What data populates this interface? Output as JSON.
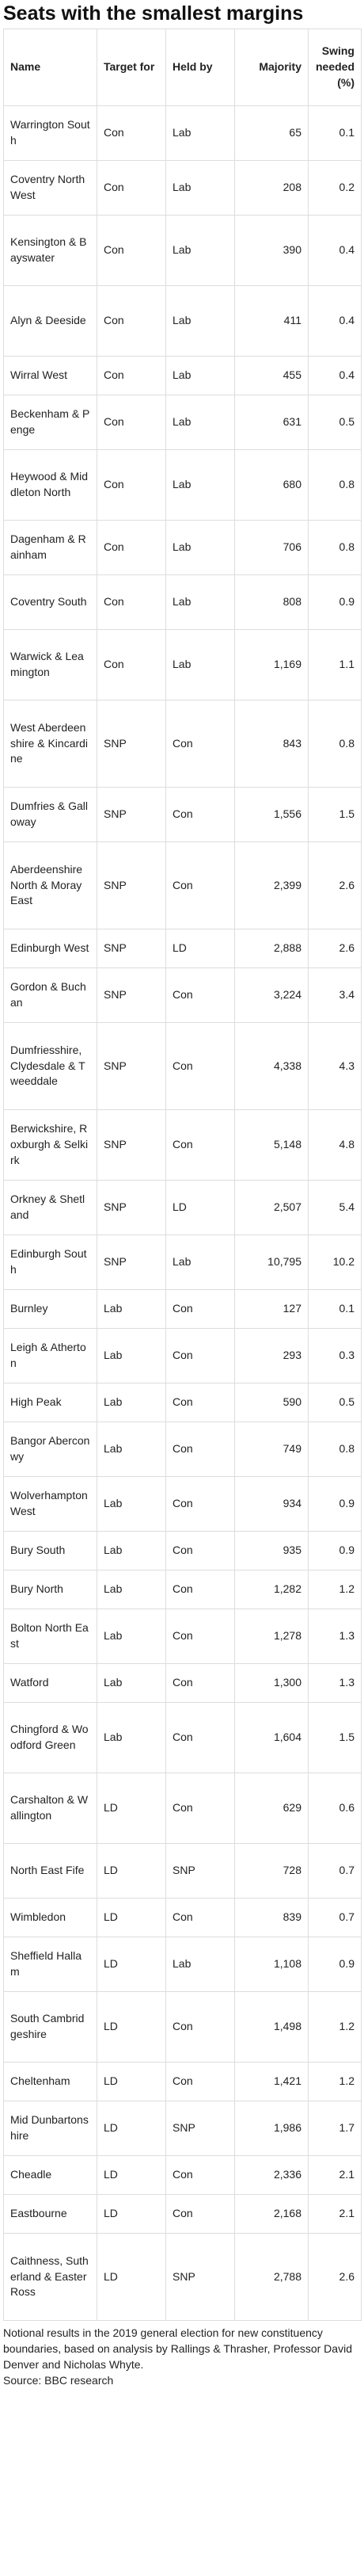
{
  "title": "Seats with the smallest margins",
  "columns": [
    "Name",
    "Target for",
    "Held by",
    "Majority",
    "Swing needed (%)"
  ],
  "rows": [
    {
      "name": "Warrington South",
      "target": "Con",
      "held": "Lab",
      "majority": "65",
      "swing": "0.1"
    },
    {
      "name": "Coventry North West",
      "target": "Con",
      "held": "Lab",
      "majority": "208",
      "swing": "0.2"
    },
    {
      "name": "Kensington & Bayswater",
      "target": "Con",
      "held": "Lab",
      "majority": "390",
      "swing": "0.4"
    },
    {
      "name": "Alyn & Deeside",
      "target": "Con",
      "held": "Lab",
      "majority": "411",
      "swing": "0.4"
    },
    {
      "name": "Wirral West",
      "target": "Con",
      "held": "Lab",
      "majority": "455",
      "swing": "0.4"
    },
    {
      "name": "Beckenham & Penge",
      "target": "Con",
      "held": "Lab",
      "majority": "631",
      "swing": "0.5"
    },
    {
      "name": "Heywood & Middleton North",
      "target": "Con",
      "held": "Lab",
      "majority": "680",
      "swing": "0.8"
    },
    {
      "name": "Dagenham & Rainham",
      "target": "Con",
      "held": "Lab",
      "majority": "706",
      "swing": "0.8"
    },
    {
      "name": "Coventry South",
      "target": "Con",
      "held": "Lab",
      "majority": "808",
      "swing": "0.9"
    },
    {
      "name": "Warwick & Leamington",
      "target": "Con",
      "held": "Lab",
      "majority": "1,169",
      "swing": "1.1"
    },
    {
      "name": "West Aberdeenshire & Kincardine",
      "target": "SNP",
      "held": "Con",
      "majority": "843",
      "swing": "0.8"
    },
    {
      "name": "Dumfries & Galloway",
      "target": "SNP",
      "held": "Con",
      "majority": "1,556",
      "swing": "1.5"
    },
    {
      "name": "Aberdeenshire North & Moray East",
      "target": "SNP",
      "held": "Con",
      "majority": "2,399",
      "swing": "2.6"
    },
    {
      "name": "Edinburgh West",
      "target": "SNP",
      "held": "LD",
      "majority": "2,888",
      "swing": "2.6"
    },
    {
      "name": "Gordon & Buchan",
      "target": "SNP",
      "held": "Con",
      "majority": "3,224",
      "swing": "3.4"
    },
    {
      "name": "Dumfriesshire, Clydesdale & Tweeddale",
      "target": "SNP",
      "held": "Con",
      "majority": "4,338",
      "swing": "4.3"
    },
    {
      "name": "Berwickshire, Roxburgh & Selkirk",
      "target": "SNP",
      "held": "Con",
      "majority": "5,148",
      "swing": "4.8"
    },
    {
      "name": "Orkney & Shetland",
      "target": "SNP",
      "held": "LD",
      "majority": "2,507",
      "swing": "5.4"
    },
    {
      "name": "Edinburgh South",
      "target": "SNP",
      "held": "Lab",
      "majority": "10,795",
      "swing": "10.2"
    },
    {
      "name": "Burnley",
      "target": "Lab",
      "held": "Con",
      "majority": "127",
      "swing": "0.1"
    },
    {
      "name": "Leigh & Atherton",
      "target": "Lab",
      "held": "Con",
      "majority": "293",
      "swing": "0.3"
    },
    {
      "name": "High Peak",
      "target": "Lab",
      "held": "Con",
      "majority": "590",
      "swing": "0.5"
    },
    {
      "name": "Bangor Aberconwy",
      "target": "Lab",
      "held": "Con",
      "majority": "749",
      "swing": "0.8"
    },
    {
      "name": "Wolverhampton West",
      "target": "Lab",
      "held": "Con",
      "majority": "934",
      "swing": "0.9"
    },
    {
      "name": "Bury South",
      "target": "Lab",
      "held": "Con",
      "majority": "935",
      "swing": "0.9"
    },
    {
      "name": "Bury North",
      "target": "Lab",
      "held": "Con",
      "majority": "1,282",
      "swing": "1.2"
    },
    {
      "name": "Bolton North East",
      "target": "Lab",
      "held": "Con",
      "majority": "1,278",
      "swing": "1.3"
    },
    {
      "name": "Watford",
      "target": "Lab",
      "held": "Con",
      "majority": "1,300",
      "swing": "1.3"
    },
    {
      "name": "Chingford & Woodford Green",
      "target": "Lab",
      "held": "Con",
      "majority": "1,604",
      "swing": "1.5"
    },
    {
      "name": "Carshalton & Wallington",
      "target": "LD",
      "held": "Con",
      "majority": "629",
      "swing": "0.6"
    },
    {
      "name": "North East Fife",
      "target": "LD",
      "held": "SNP",
      "majority": "728",
      "swing": "0.7"
    },
    {
      "name": "Wimbledon",
      "target": "LD",
      "held": "Con",
      "majority": "839",
      "swing": "0.7"
    },
    {
      "name": "Sheffield Hallam",
      "target": "LD",
      "held": "Lab",
      "majority": "1,108",
      "swing": "0.9"
    },
    {
      "name": "South Cambridgeshire",
      "target": "LD",
      "held": "Con",
      "majority": "1,498",
      "swing": "1.2"
    },
    {
      "name": "Cheltenham",
      "target": "LD",
      "held": "Con",
      "majority": "1,421",
      "swing": "1.2"
    },
    {
      "name": "Mid Dunbartonshire",
      "target": "LD",
      "held": "SNP",
      "majority": "1,986",
      "swing": "1.7"
    },
    {
      "name": "Cheadle",
      "target": "LD",
      "held": "Con",
      "majority": "2,336",
      "swing": "2.1"
    },
    {
      "name": "Eastbourne",
      "target": "LD",
      "held": "Con",
      "majority": "2,168",
      "swing": "2.1"
    },
    {
      "name": "Caithness, Sutherland & Easter Ross",
      "target": "LD",
      "held": "SNP",
      "majority": "2,788",
      "swing": "2.6"
    }
  ],
  "notes": "Notional results in the 2019 general election for new constituency boundaries, based on analysis by Rallings & Thrasher, Professor David Denver and Nicholas Whyte.",
  "source": "Source: BBC research"
}
